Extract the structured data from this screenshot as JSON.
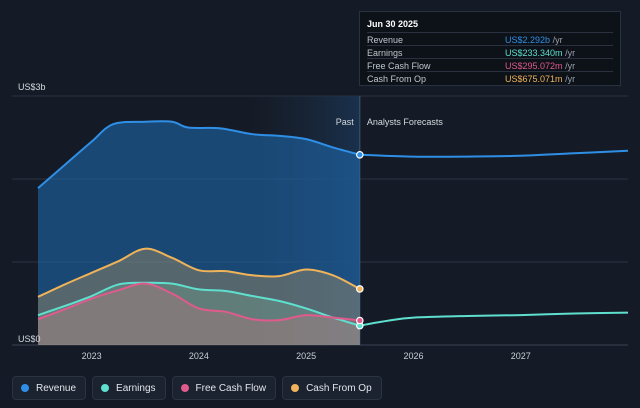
{
  "chart_data": {
    "type": "area",
    "y_top_label": "US$3b",
    "y_bottom_label": "US$0",
    "ylim": [
      0,
      3.0
    ],
    "xlim": [
      2022.5,
      2028.0
    ],
    "x_ticks": [
      2023,
      2024,
      2025,
      2026,
      2027
    ],
    "x_tick_labels": [
      "2023",
      "2024",
      "2025",
      "2026",
      "2027"
    ],
    "divider_x": 2025.5,
    "past_label": "Past",
    "forecast_label": "Analysts Forecasts",
    "series": [
      {
        "name": "Revenue",
        "color": "#2f8fe6",
        "x": [
          2022.5,
          2022.75,
          2023.0,
          2023.2,
          2023.5,
          2023.75,
          2023.9,
          2024.2,
          2024.5,
          2024.75,
          2025.0,
          2025.25,
          2025.5
        ],
        "values": [
          1.89,
          2.17,
          2.45,
          2.66,
          2.69,
          2.69,
          2.62,
          2.61,
          2.54,
          2.52,
          2.48,
          2.38,
          2.292
        ],
        "forecast_x": [
          2025.5,
          2026.0,
          2026.5,
          2027.0,
          2027.5,
          2028.0
        ],
        "forecast_values": [
          2.292,
          2.27,
          2.27,
          2.28,
          2.31,
          2.34
        ]
      },
      {
        "name": "Earnings",
        "color": "#5fe0cf",
        "x": [
          2022.5,
          2022.75,
          2023.0,
          2023.25,
          2023.5,
          2023.75,
          2024.0,
          2024.25,
          2024.5,
          2024.75,
          2025.0,
          2025.25,
          2025.5
        ],
        "values": [
          0.36,
          0.47,
          0.59,
          0.73,
          0.75,
          0.74,
          0.67,
          0.65,
          0.59,
          0.53,
          0.44,
          0.33,
          0.2333
        ],
        "forecast_x": [
          2025.5,
          2025.75,
          2026.0,
          2026.5,
          2027.0,
          2027.5,
          2028.0
        ],
        "forecast_values": [
          0.2333,
          0.29,
          0.33,
          0.35,
          0.36,
          0.38,
          0.39
        ]
      },
      {
        "name": "Free Cash Flow",
        "color": "#e05a8c",
        "x": [
          2022.5,
          2022.75,
          2023.0,
          2023.25,
          2023.5,
          2023.75,
          2024.0,
          2024.25,
          2024.5,
          2024.75,
          2025.0,
          2025.25,
          2025.5
        ],
        "values": [
          0.31,
          0.43,
          0.56,
          0.66,
          0.74,
          0.62,
          0.44,
          0.4,
          0.31,
          0.3,
          0.36,
          0.33,
          0.2951
        ]
      },
      {
        "name": "Cash From Op",
        "color": "#f0b35a",
        "x": [
          2022.5,
          2022.75,
          2023.0,
          2023.25,
          2023.5,
          2023.75,
          2024.0,
          2024.25,
          2024.5,
          2024.75,
          2025.0,
          2025.25,
          2025.5
        ],
        "values": [
          0.58,
          0.73,
          0.87,
          1.01,
          1.16,
          1.05,
          0.9,
          0.89,
          0.84,
          0.83,
          0.91,
          0.84,
          0.6751
        ]
      }
    ],
    "tooltip": {
      "date": "Jun 30 2025",
      "rows": [
        {
          "label": "Revenue",
          "value": "US$2.292b",
          "unit": "/yr",
          "color": "#2f8fe6"
        },
        {
          "label": "Earnings",
          "value": "US$233.340m",
          "unit": "/yr",
          "color": "#5fe0cf"
        },
        {
          "label": "Free Cash Flow",
          "value": "US$295.072m",
          "unit": "/yr",
          "color": "#e05a8c"
        },
        {
          "label": "Cash From Op",
          "value": "US$675.071m",
          "unit": "/yr",
          "color": "#f0b35a"
        }
      ]
    }
  },
  "legend": [
    {
      "label": "Revenue",
      "color": "#2f8fe6"
    },
    {
      "label": "Earnings",
      "color": "#5fe0cf"
    },
    {
      "label": "Free Cash Flow",
      "color": "#e05a8c"
    },
    {
      "label": "Cash From Op",
      "color": "#f0b35a"
    }
  ]
}
